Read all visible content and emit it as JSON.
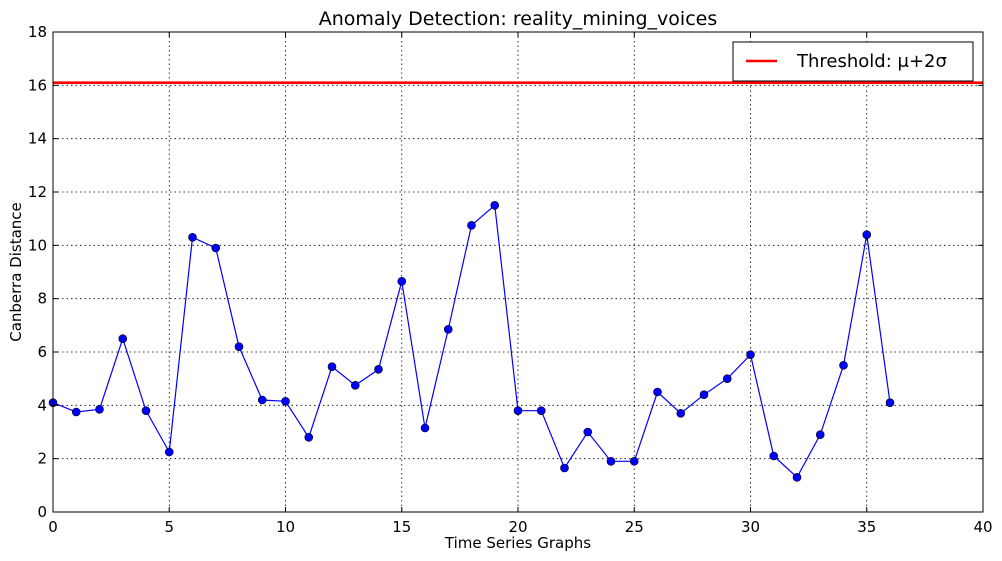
{
  "chart_data": {
    "type": "line",
    "title": "Anomaly Detection: reality_mining_voices",
    "xlabel": "Time Series Graphs",
    "ylabel": "Canberra Distance",
    "xlim": [
      0,
      40
    ],
    "ylim": [
      0,
      18
    ],
    "xticks": [
      0,
      5,
      10,
      15,
      20,
      25,
      30,
      35,
      40
    ],
    "yticks": [
      0,
      2,
      4,
      6,
      8,
      10,
      12,
      14,
      16,
      18
    ],
    "grid": true,
    "legend_position": "top-right",
    "series": [
      {
        "type": "line",
        "color": "#0000ff",
        "marker": "circle",
        "x": [
          0,
          1,
          2,
          3,
          4,
          5,
          6,
          7,
          8,
          9,
          10,
          11,
          12,
          13,
          14,
          15,
          16,
          17,
          18,
          19,
          20,
          21,
          22,
          23,
          24,
          25,
          26,
          27,
          28,
          29,
          30,
          31,
          32,
          33,
          34,
          35,
          36
        ],
        "y": [
          4.1,
          3.75,
          3.85,
          6.5,
          3.8,
          2.25,
          10.3,
          9.9,
          6.2,
          4.2,
          4.15,
          2.8,
          5.45,
          4.75,
          5.35,
          8.65,
          3.15,
          6.85,
          10.75,
          11.5,
          3.8,
          3.8,
          1.65,
          3.0,
          1.9,
          1.9,
          4.5,
          3.7,
          4.4,
          5.0,
          5.9,
          2.1,
          1.3,
          2.9,
          5.5,
          10.4,
          4.1
        ]
      }
    ],
    "threshold": {
      "value": 16.1,
      "color": "#ff0000",
      "label": "Threshold: μ+2σ"
    }
  }
}
